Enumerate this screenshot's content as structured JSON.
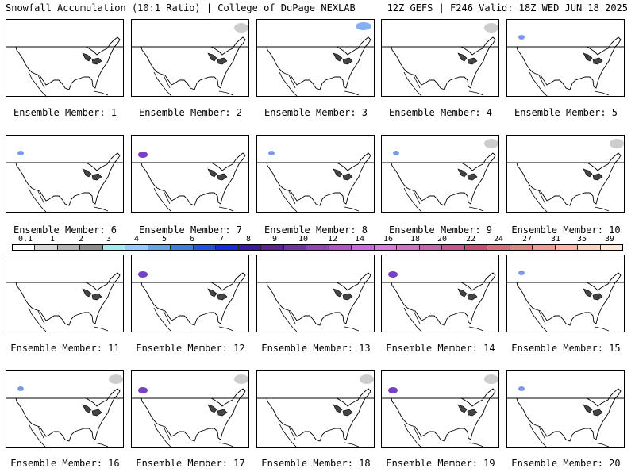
{
  "header": {
    "left": "Snowfall Accumulation (10:1 Ratio) | College of DuPage NEXLAB",
    "right": "12Z GEFS | F246 Valid: 18Z WED JUN 18 2025"
  },
  "panels": [
    {
      "label": "Ensemble Member: 1",
      "snow": []
    },
    {
      "label": "Ensemble Member: 2",
      "snow": [
        "gray-east"
      ]
    },
    {
      "label": "Ensemble Member: 3",
      "snow": [
        "blue-east"
      ]
    },
    {
      "label": "Ensemble Member: 4",
      "snow": [
        "gray-east"
      ]
    },
    {
      "label": "Ensemble Member: 5",
      "snow": [
        "blue-west"
      ]
    },
    {
      "label": "Ensemble Member: 6",
      "snow": [
        "blue-west"
      ]
    },
    {
      "label": "Ensemble Member: 7",
      "snow": [
        "purple-west"
      ]
    },
    {
      "label": "Ensemble Member: 8",
      "snow": [
        "blue-west"
      ]
    },
    {
      "label": "Ensemble Member: 9",
      "snow": [
        "blue-west",
        "gray-east"
      ]
    },
    {
      "label": "Ensemble Member: 10",
      "snow": [
        "gray-east"
      ]
    },
    {
      "label": "Ensemble Member: 11",
      "snow": []
    },
    {
      "label": "Ensemble Member: 12",
      "snow": [
        "purple-west"
      ]
    },
    {
      "label": "Ensemble Member: 13",
      "snow": []
    },
    {
      "label": "Ensemble Member: 14",
      "snow": [
        "purple-west"
      ]
    },
    {
      "label": "Ensemble Member: 15",
      "snow": [
        "blue-west"
      ]
    },
    {
      "label": "Ensemble Member: 16",
      "snow": [
        "blue-west",
        "gray-east"
      ]
    },
    {
      "label": "Ensemble Member: 17",
      "snow": [
        "purple-west",
        "gray-east"
      ]
    },
    {
      "label": "Ensemble Member: 18",
      "snow": [
        "gray-east"
      ]
    },
    {
      "label": "Ensemble Member: 19",
      "snow": [
        "purple-west",
        "gray-east"
      ]
    },
    {
      "label": "Ensemble Member: 20",
      "snow": [
        "blue-west"
      ]
    }
  ],
  "colorbar": {
    "ticks": [
      "0.1",
      "1",
      "2",
      "3",
      "4",
      "5",
      "6",
      "7",
      "8",
      "9",
      "10",
      "12",
      "14",
      "16",
      "18",
      "20",
      "22",
      "24",
      "27",
      "31",
      "35",
      "39"
    ],
    "colors": [
      "#ffffff",
      "#d8d8d8",
      "#b4b4b4",
      "#8c8c8c",
      "#aae6ee",
      "#9cc8f4",
      "#6fa0f0",
      "#4a78ea",
      "#2a50e0",
      "#1a2cd8",
      "#3a18b0",
      "#5a20a0",
      "#7030b0",
      "#8c44c0",
      "#a858c8",
      "#c070d0",
      "#d080d0",
      "#d070c0",
      "#d060a8",
      "#d05090",
      "#d04878",
      "#e06878",
      "#e88080",
      "#f09c94",
      "#f4b8a8",
      "#f8d4c0",
      "#fbe8d8"
    ]
  }
}
